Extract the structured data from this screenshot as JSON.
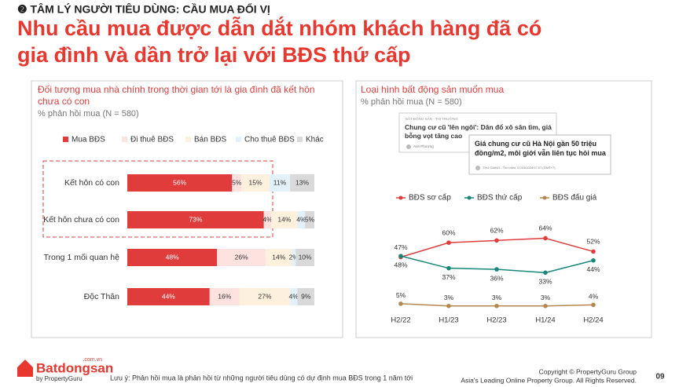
{
  "section_label": "❷ TÂM LÝ NGƯỜI TIÊU DÙNG: CẦU MUA ĐỔI VỊ",
  "headline": [
    "Nhu cầu mua được dẫn dắt nhóm khách hàng đã có",
    "gia đình và dần trở lại với BĐS thứ cấp"
  ],
  "chart_data": [
    {
      "type": "bar",
      "stacked": true,
      "title": [
        "Đối tượng mua nhà chính trong thời gian tới là gia đình đã kết hôn",
        "chưa có con"
      ],
      "subtitle": "% phản hồi mua (N = 580)",
      "categories": [
        "Kết hôn có con",
        "Kết hôn chưa có con",
        "Trong 1 mối quan hệ",
        "Độc Thân"
      ],
      "xlim": [
        0,
        100
      ],
      "series": [
        {
          "name": "Mua BĐS",
          "color": "#e03c3c",
          "values": [
            56,
            73,
            48,
            44
          ],
          "value_labels": [
            "56%",
            "73%",
            "48%",
            "44%"
          ]
        },
        {
          "name": "Đi thuê BĐS",
          "color": "#fde2e0",
          "values": [
            5,
            4,
            26,
            16
          ],
          "value_labels": [
            "5%",
            "4%",
            "26%",
            "16%"
          ]
        },
        {
          "name": "Bán BĐS",
          "color": "#fdf0dc",
          "values": [
            15,
            14,
            14,
            27
          ],
          "value_labels": [
            "15%",
            "14%",
            "14%",
            "27%"
          ]
        },
        {
          "name": "Cho thuê BĐS",
          "color": "#e2f1fa",
          "values": [
            11,
            4,
            2,
            4
          ],
          "value_labels": [
            "11%",
            "4%",
            "2%",
            "4%"
          ]
        },
        {
          "name": "Khác",
          "color": "#d9d9d9",
          "values": [
            13,
            5,
            10,
            9
          ],
          "value_labels": [
            "13%",
            "5%",
            "10%",
            "9%"
          ]
        }
      ]
    },
    {
      "type": "line",
      "title": "Loại hình bất động sản muốn mua",
      "subtitle": "% phản hồi mua (N = 580)",
      "categories": [
        "H2/22",
        "H1/23",
        "H2/23",
        "H1/24",
        "H2/24"
      ],
      "ylim": [
        0,
        70
      ],
      "series": [
        {
          "name": "BĐS sơ cấp",
          "color": "#e03c3c",
          "values": [
            47,
            60,
            62,
            64,
            52
          ],
          "value_labels": [
            "47%",
            "60%",
            "62%",
            "64%",
            "52%"
          ]
        },
        {
          "name": "BĐS thứ cấp",
          "color": "#17877a",
          "values": [
            48,
            37,
            36,
            33,
            44
          ],
          "value_labels": [
            "48%",
            "37%",
            "36%",
            "33%",
            "44%"
          ]
        },
        {
          "name": "BĐS đấu giá",
          "color": "#b5874c",
          "values": [
            5,
            3,
            3,
            3,
            4
          ],
          "value_labels": [
            "5%",
            "3%",
            "3%",
            "3%",
            "4%"
          ]
        }
      ]
    }
  ],
  "news_cards": [
    {
      "tag": "BẤT ĐỘNG SẢN · THỊ TRƯỜNG",
      "headline": "Chung cư cũ 'lên ngôi': Dân đổ xô săn tìm, giá bỗng vọt tăng cao",
      "byline": "Anh Phương"
    },
    {
      "headline": "Giá chung cư cũ Hà Nội gần 50 triệu đồng/m2, môi giới vẫn liên tục hỏi mua",
      "byline": "THU GIANG - Thứ năm, 07/03/2024 07:07 (GMT+7)"
    }
  ],
  "footer": {
    "logo": "Batdongsan",
    "logo_domain": ".com.vn",
    "logo_by": "by PropertyGuru",
    "note": "Lưu ý: Phản hồi mua là phản hồi từ những người tiêu dùng có dự định mua BĐS trong 1 năm tới",
    "copyright": "Copyright © PropertyGuru Group",
    "rights": "Asia's Leading Online Property Group. All Rights Reserved.",
    "page": "09"
  }
}
